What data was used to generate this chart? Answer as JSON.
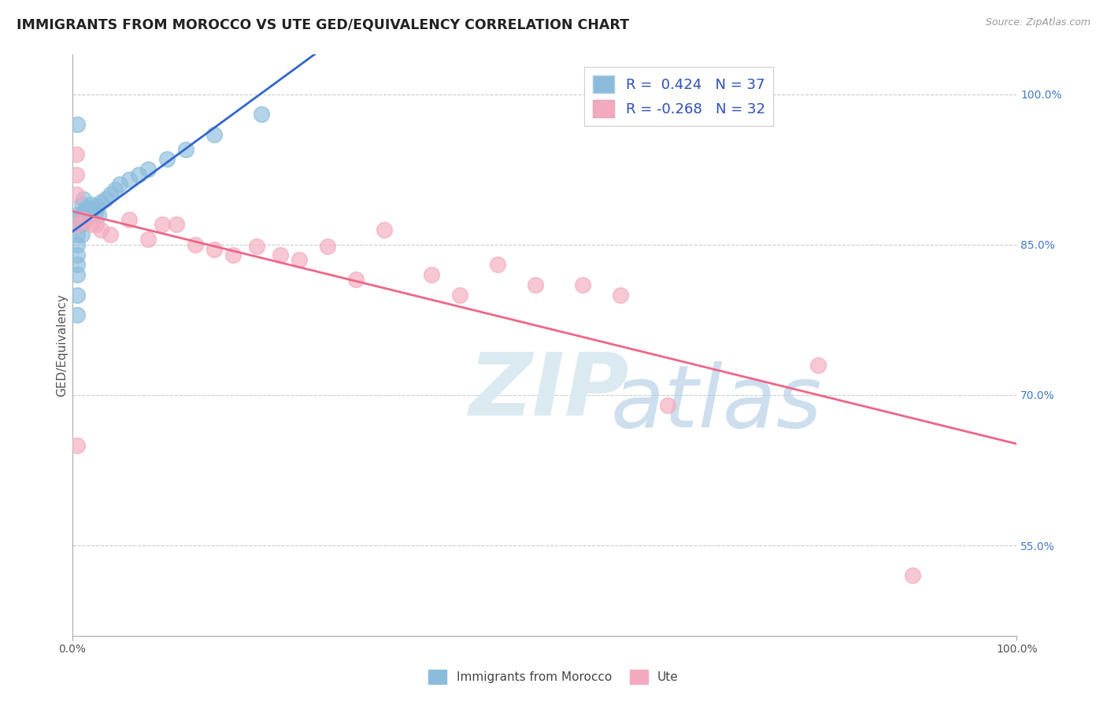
{
  "title": "IMMIGRANTS FROM MOROCCO VS UTE GED/EQUIVALENCY CORRELATION CHART",
  "source": "Source: ZipAtlas.com",
  "ylabel": "GED/Equivalency",
  "right_ytick_vals": [
    1.0,
    0.85,
    0.7,
    0.55
  ],
  "right_ytick_labels": [
    "100.0%",
    "85.0%",
    "70.0%",
    "55.0%"
  ],
  "legend_blue_label": "Immigrants from Morocco",
  "legend_pink_label": "Ute",
  "R_blue": 0.424,
  "N_blue": 37,
  "R_pink": -0.268,
  "N_pink": 32,
  "blue_color": "#8BBCDC",
  "pink_color": "#F4AABE",
  "blue_line_color": "#3366CC",
  "pink_line_color": "#EE6688",
  "blue_scatter_x": [
    0.005,
    0.005,
    0.005,
    0.005,
    0.005,
    0.005,
    0.005,
    0.005,
    0.005,
    0.005,
    0.01,
    0.01,
    0.01,
    0.01,
    0.012,
    0.012,
    0.014,
    0.014,
    0.016,
    0.018,
    0.02,
    0.022,
    0.024,
    0.026,
    0.028,
    0.03,
    0.035,
    0.04,
    0.045,
    0.05,
    0.06,
    0.07,
    0.08,
    0.1,
    0.12,
    0.15,
    0.2
  ],
  "blue_scatter_y": [
    0.87,
    0.97,
    0.88,
    0.86,
    0.85,
    0.84,
    0.83,
    0.82,
    0.8,
    0.78,
    0.89,
    0.88,
    0.87,
    0.86,
    0.895,
    0.875,
    0.885,
    0.875,
    0.88,
    0.885,
    0.89,
    0.885,
    0.882,
    0.888,
    0.88,
    0.892,
    0.895,
    0.9,
    0.905,
    0.91,
    0.915,
    0.92,
    0.925,
    0.935,
    0.945,
    0.96,
    0.98
  ],
  "pink_scatter_x": [
    0.004,
    0.004,
    0.004,
    0.005,
    0.005,
    0.012,
    0.02,
    0.025,
    0.03,
    0.04,
    0.06,
    0.08,
    0.095,
    0.11,
    0.13,
    0.15,
    0.17,
    0.195,
    0.22,
    0.24,
    0.27,
    0.3,
    0.33,
    0.38,
    0.41,
    0.45,
    0.49,
    0.54,
    0.58,
    0.63,
    0.79,
    0.89
  ],
  "pink_scatter_y": [
    0.94,
    0.92,
    0.9,
    0.87,
    0.65,
    0.875,
    0.87,
    0.87,
    0.865,
    0.86,
    0.875,
    0.855,
    0.87,
    0.87,
    0.85,
    0.845,
    0.84,
    0.848,
    0.84,
    0.835,
    0.848,
    0.815,
    0.865,
    0.82,
    0.8,
    0.83,
    0.81,
    0.81,
    0.8,
    0.69,
    0.73,
    0.52
  ],
  "xlim": [
    0.0,
    1.0
  ],
  "ylim": [
    0.46,
    1.04
  ],
  "background_color": "#FFFFFF",
  "title_fontsize": 12.5,
  "axis_label_fontsize": 11,
  "tick_fontsize": 10
}
